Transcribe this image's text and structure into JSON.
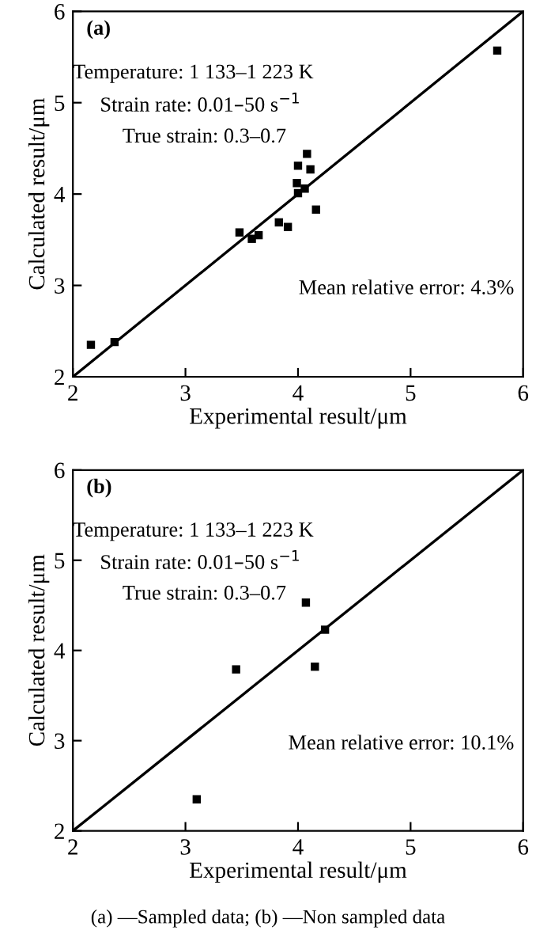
{
  "chart_data": [
    {
      "type": "scatter",
      "xlabel": "Experimental result/μm",
      "ylabel": "Calculated result/μm",
      "xlim": [
        2,
        6
      ],
      "ylim": [
        2,
        6
      ],
      "xticks": [
        2,
        3,
        4,
        5,
        6
      ],
      "yticks": [
        2,
        3,
        4,
        5,
        6
      ],
      "grid": false,
      "legend": false,
      "annotations": [
        "(a)",
        "Temperature: 1 133–1 223 K",
        "Strain rate: 0.01–50 s$^{−1}$",
        "True strain: 0.3–0.7",
        "Mean relative error: 4.3%"
      ],
      "series": [
        {
          "color": "#000000",
          "marker": "square",
          "x": [
            2.16,
            2.37,
            3.48,
            3.59,
            3.65,
            3.83,
            3.91,
            4.0,
            4.08,
            4.11,
            3.99,
            4.0,
            4.06,
            4.16,
            5.77
          ],
          "values": [
            2.35,
            2.38,
            3.58,
            3.51,
            3.55,
            3.69,
            3.64,
            4.31,
            4.44,
            4.27,
            4.12,
            4.01,
            4.06,
            3.83,
            5.57
          ]
        },
        {
          "type": "line",
          "color": "#000000",
          "marker": "none",
          "line_style": "solid",
          "x": [
            2,
            6
          ],
          "values": [
            2,
            6
          ]
        }
      ]
    },
    {
      "type": "scatter",
      "xlabel": "Experimental result/μm",
      "ylabel": "Calculated result/μm",
      "xlim": [
        2,
        6
      ],
      "ylim": [
        2,
        6
      ],
      "xticks": [
        2,
        3,
        4,
        5,
        6
      ],
      "yticks": [
        2,
        3,
        4,
        5,
        6
      ],
      "grid": false,
      "legend": false,
      "annotations": [
        "(b)",
        "Temperature: 1 133–1 223 K",
        "Strain rate: 0.01–50 s$^{−1}$",
        "True strain: 0.3–0.7",
        "Mean relative error: 10.1%",
        "(a) —Sampled data; (b) —Non sampled data"
      ],
      "series": [
        {
          "color": "#000000",
          "marker": "square",
          "x": [
            3.1,
            3.45,
            4.07,
            4.15,
            4.24
          ],
          "values": [
            2.35,
            3.79,
            4.53,
            3.82,
            4.23
          ]
        },
        {
          "type": "line",
          "color": "#000000",
          "marker": "none",
          "line_style": "solid",
          "x": [
            2,
            6
          ],
          "values": [
            2,
            6
          ]
        }
      ]
    }
  ]
}
